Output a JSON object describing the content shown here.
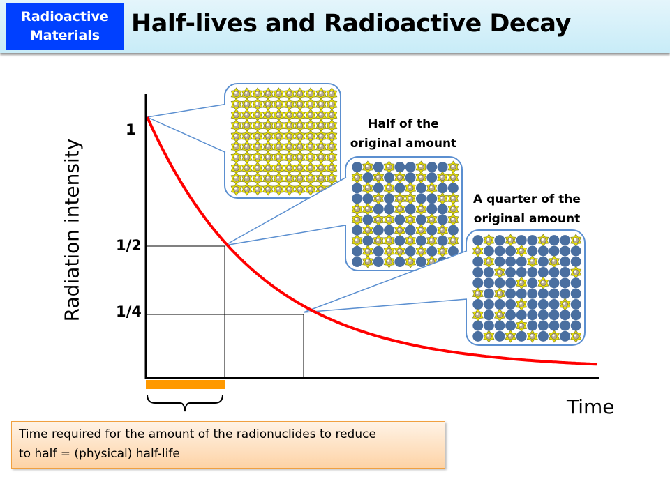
{
  "header": {
    "tag_line1": "Radioactive",
    "tag_line2": "Materials",
    "title": "Half-lives and Radioactive Decay"
  },
  "axes": {
    "y_label": "Radiation intensity",
    "x_label": "Time",
    "y_ticks": [
      "1",
      "1/2",
      "1/4"
    ]
  },
  "callouts": [
    {
      "caption_line1": "",
      "caption_line2": "",
      "pattern": [
        "SSSSSSSSSS",
        "SSSSSSSSSS",
        "SSSSSSSSSS",
        "SSSSSSSSSS",
        "SSSSSSSSSS",
        "SSSSSSSSSS",
        "SSSSSSSSSS",
        "SSSSSSSSSS",
        "SSSSSSSSSS",
        "SSSSSSSSSS"
      ]
    },
    {
      "caption_line1": "Half of the",
      "caption_line2": "original amount",
      "pattern": [
        "OSOSOOSOOS",
        "SOSOSOSOSS",
        "OSOSOSOSOO",
        "OOSOSSOOSS",
        "SSOOSOSOOS",
        "SOSSOSOSOS",
        "OSOOSOSOSO",
        "SOSSOSOSOS",
        "OSOSSOSOSO",
        "OSOSOSOSOS"
      ]
    },
    {
      "caption_line1": "A quarter of the",
      "caption_line2": "original amount",
      "pattern": [
        "OSOSOOSOOS",
        "SOOOSOOOOO",
        "OSOOOSOSOO",
        "OOSOOOOOOS",
        "OOOOSOSOOO",
        "SOSOOOOOOO",
        "OOOOSOOOSO",
        "SOSOOOOOOO",
        "OOOOSOOOOO",
        "OSOSOSOSOS"
      ]
    }
  ],
  "note": {
    "line1": "Time required for the amount of the radionuclides to reduce",
    "line2": "to half = (physical) half-life"
  },
  "colors": {
    "curve": "#ff0000",
    "half_life_bar": "#ff9900",
    "decayed_atom": "#4a6fa0",
    "radioactive_atom": "#e8e000",
    "callout_border": "#5b8fd0",
    "tag_bg": "#0040ff"
  }
}
